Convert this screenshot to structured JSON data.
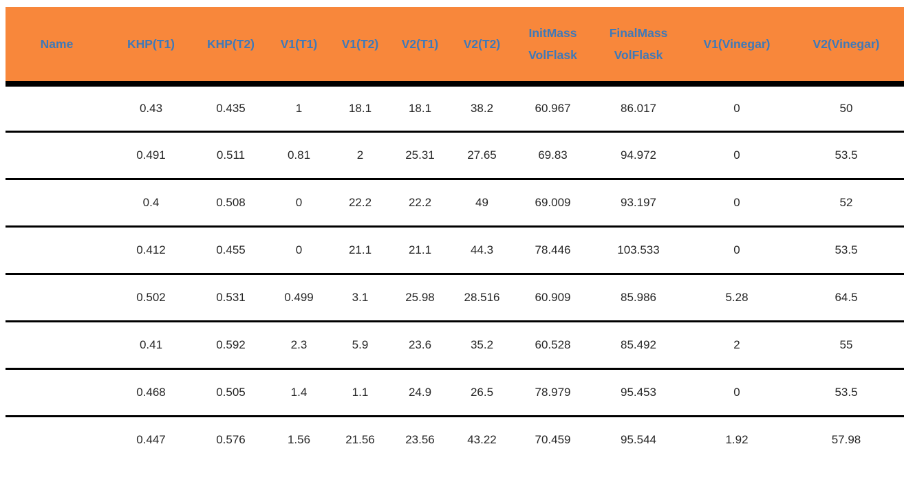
{
  "colors": {
    "header_bg": "#F8873B",
    "header_text": "#3E79B9",
    "body_text": "#262626",
    "divider": "#000000"
  },
  "table": {
    "columns": [
      {
        "id": "name",
        "label": "Name"
      },
      {
        "id": "khp-t1",
        "label": "KHP(T1)"
      },
      {
        "id": "khp-t2",
        "label": "KHP(T2)"
      },
      {
        "id": "v1-t1",
        "label": "V1(T1)"
      },
      {
        "id": "v1-t2",
        "label": "V1(T2)"
      },
      {
        "id": "v2-t1",
        "label": "V2(T1)"
      },
      {
        "id": "v2-t2",
        "label": "V2(T2)"
      },
      {
        "id": "initmass-volflask",
        "label": "InitMass\nVolFlask"
      },
      {
        "id": "finalmass-volflask",
        "label": "FinalMass\nVolFlask"
      },
      {
        "id": "v1-vinegar",
        "label": "V1(Vinegar)"
      },
      {
        "id": "v2-vinegar",
        "label": "V2(Vinegar)"
      }
    ],
    "rows": [
      [
        "",
        "0.43",
        "0.435",
        "1",
        "18.1",
        "18.1",
        "38.2",
        "60.967",
        "86.017",
        "0",
        "50"
      ],
      [
        "",
        "0.491",
        "0.511",
        "0.81",
        "2",
        "25.31",
        "27.65",
        "69.83",
        "94.972",
        "0",
        "53.5"
      ],
      [
        "",
        "0.4",
        "0.508",
        "0",
        "22.2",
        "22.2",
        "49",
        "69.009",
        "93.197",
        "0",
        "52"
      ],
      [
        "",
        "0.412",
        "0.455",
        "0",
        "21.1",
        "21.1",
        "44.3",
        "78.446",
        "103.533",
        "0",
        "53.5"
      ],
      [
        "",
        "0.502",
        "0.531",
        "0.499",
        "3.1",
        "25.98",
        "28.516",
        "60.909",
        "85.986",
        "5.28",
        "64.5"
      ],
      [
        "",
        "0.41",
        "0.592",
        "2.3",
        "5.9",
        "23.6",
        "35.2",
        "60.528",
        "85.492",
        "2",
        "55"
      ],
      [
        "",
        "0.468",
        "0.505",
        "1.4",
        "1.1",
        "24.9",
        "26.5",
        "78.979",
        "95.453",
        "0",
        "53.5"
      ],
      [
        "",
        "0.447",
        "0.576",
        "1.56",
        "21.56",
        "23.56",
        "43.22",
        "70.459",
        "95.544",
        "1.92",
        "57.98"
      ]
    ]
  }
}
